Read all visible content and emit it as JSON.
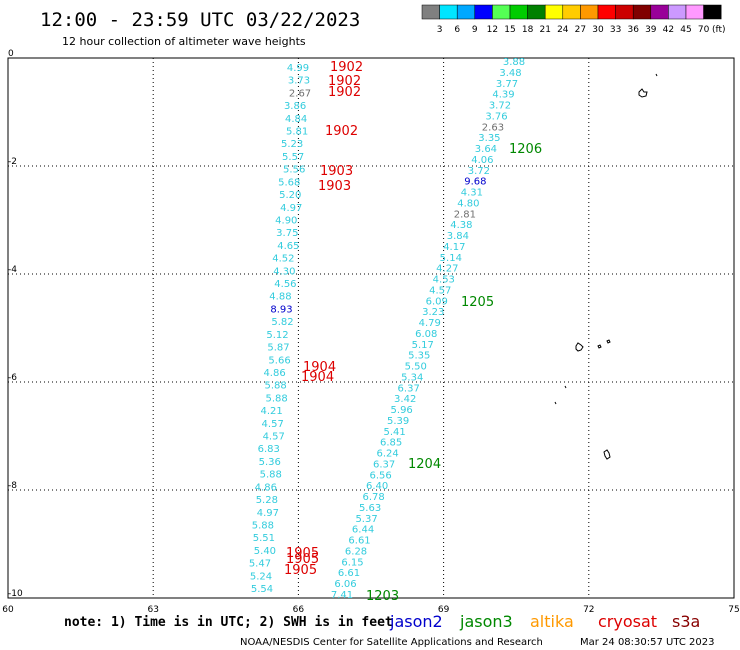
{
  "header": {
    "title": "12:00 - 23:59 UTC 03/22/2023",
    "subtitle": "12 hour collection of altimeter wave heights"
  },
  "color_scale": {
    "unit": "(ft)",
    "bins": [
      {
        "color": "#808080",
        "label": "3"
      },
      {
        "color": "#00e5ff",
        "label": "6"
      },
      {
        "color": "#00a8ff",
        "label": "9"
      },
      {
        "color": "#0000ff",
        "label": "12"
      },
      {
        "color": "#55ff55",
        "label": "15"
      },
      {
        "color": "#00cc00",
        "label": "18"
      },
      {
        "color": "#008000",
        "label": "21"
      },
      {
        "color": "#ffff00",
        "label": "24"
      },
      {
        "color": "#ffcc00",
        "label": "27"
      },
      {
        "color": "#ff9900",
        "label": "30"
      },
      {
        "color": "#ff0000",
        "label": "33"
      },
      {
        "color": "#cc0000",
        "label": "36"
      },
      {
        "color": "#800000",
        "label": "39"
      },
      {
        "color": "#990099",
        "label": "42"
      },
      {
        "color": "#cc99ff",
        "label": "45"
      },
      {
        "color": "#ff99ff",
        "label": "70"
      },
      {
        "color": "#000000",
        "label": ""
      }
    ]
  },
  "axes": {
    "lat_labels": [
      "0",
      "-2",
      "-4",
      "-6",
      "-8",
      "-10"
    ],
    "lon_labels": [
      "60",
      "63",
      "66",
      "69",
      "72",
      "75"
    ]
  },
  "colors": {
    "cyan": "#33ccdd",
    "gray": "#707070",
    "blue": "#0000cc",
    "red": "#dd0000",
    "green": "#008800"
  },
  "tracks": {
    "west": [
      {
        "v": "4.99",
        "c": "cyan"
      },
      {
        "v": "3.73",
        "c": "cyan"
      },
      {
        "v": "2.67",
        "c": "gray"
      },
      {
        "v": "3.86",
        "c": "cyan"
      },
      {
        "v": "4.84",
        "c": "cyan"
      },
      {
        "v": "5.81",
        "c": "cyan"
      },
      {
        "v": "5.23",
        "c": "cyan"
      },
      {
        "v": "5.57",
        "c": "cyan"
      },
      {
        "v": "5.56",
        "c": "cyan"
      },
      {
        "v": "5.68",
        "c": "cyan"
      },
      {
        "v": "5.20",
        "c": "cyan"
      },
      {
        "v": "4.97",
        "c": "cyan"
      },
      {
        "v": "4.90",
        "c": "cyan"
      },
      {
        "v": "3.75",
        "c": "cyan"
      },
      {
        "v": "4.65",
        "c": "cyan"
      },
      {
        "v": "4.52",
        "c": "cyan"
      },
      {
        "v": "4.30",
        "c": "cyan"
      },
      {
        "v": "4.56",
        "c": "cyan"
      },
      {
        "v": "4.88",
        "c": "cyan"
      },
      {
        "v": "8.93",
        "c": "blue"
      },
      {
        "v": "5.82",
        "c": "cyan"
      },
      {
        "v": "5.12",
        "c": "cyan"
      },
      {
        "v": "5.87",
        "c": "cyan"
      },
      {
        "v": "5.66",
        "c": "cyan"
      },
      {
        "v": "4.86",
        "c": "cyan"
      },
      {
        "v": "5.88",
        "c": "cyan"
      },
      {
        "v": "5.88",
        "c": "cyan"
      },
      {
        "v": "4.21",
        "c": "cyan"
      },
      {
        "v": "4.57",
        "c": "cyan"
      },
      {
        "v": "4.57",
        "c": "cyan"
      },
      {
        "v": "6.83",
        "c": "cyan"
      },
      {
        "v": "5.36",
        "c": "cyan"
      },
      {
        "v": "5.88",
        "c": "cyan"
      },
      {
        "v": "4.86",
        "c": "cyan"
      },
      {
        "v": "5.28",
        "c": "cyan"
      },
      {
        "v": "4.97",
        "c": "cyan"
      },
      {
        "v": "5.88",
        "c": "cyan"
      },
      {
        "v": "5.51",
        "c": "cyan"
      },
      {
        "v": "5.40",
        "c": "cyan"
      },
      {
        "v": "5.47",
        "c": "cyan"
      },
      {
        "v": "5.24",
        "c": "cyan"
      },
      {
        "v": "5.54",
        "c": "cyan"
      }
    ],
    "east": [
      {
        "v": "3.88",
        "c": "cyan"
      },
      {
        "v": "3.48",
        "c": "cyan"
      },
      {
        "v": "3.77",
        "c": "cyan"
      },
      {
        "v": "4.39",
        "c": "cyan"
      },
      {
        "v": "3.72",
        "c": "cyan"
      },
      {
        "v": "3.76",
        "c": "cyan"
      },
      {
        "v": "2.63",
        "c": "gray"
      },
      {
        "v": "3.35",
        "c": "cyan"
      },
      {
        "v": "3.64",
        "c": "cyan"
      },
      {
        "v": "4.06",
        "c": "cyan"
      },
      {
        "v": "3.72",
        "c": "cyan"
      },
      {
        "v": "9.68",
        "c": "blue"
      },
      {
        "v": "4.31",
        "c": "cyan"
      },
      {
        "v": "4.80",
        "c": "cyan"
      },
      {
        "v": "2.81",
        "c": "gray"
      },
      {
        "v": "4.38",
        "c": "cyan"
      },
      {
        "v": "3.84",
        "c": "cyan"
      },
      {
        "v": "4.17",
        "c": "cyan"
      },
      {
        "v": "5.14",
        "c": "cyan"
      },
      {
        "v": "4.27",
        "c": "cyan"
      },
      {
        "v": "4.53",
        "c": "cyan"
      },
      {
        "v": "4.57",
        "c": "cyan"
      },
      {
        "v": "6.09",
        "c": "cyan"
      },
      {
        "v": "3.23",
        "c": "cyan"
      },
      {
        "v": "4.79",
        "c": "cyan"
      },
      {
        "v": "6.08",
        "c": "cyan"
      },
      {
        "v": "5.17",
        "c": "cyan"
      },
      {
        "v": "5.35",
        "c": "cyan"
      },
      {
        "v": "5.50",
        "c": "cyan"
      },
      {
        "v": "5.34",
        "c": "cyan"
      },
      {
        "v": "6.37",
        "c": "cyan"
      },
      {
        "v": "3.42",
        "c": "cyan"
      },
      {
        "v": "5.96",
        "c": "cyan"
      },
      {
        "v": "5.39",
        "c": "cyan"
      },
      {
        "v": "5.41",
        "c": "cyan"
      },
      {
        "v": "6.85",
        "c": "cyan"
      },
      {
        "v": "6.24",
        "c": "cyan"
      },
      {
        "v": "6.37",
        "c": "cyan"
      },
      {
        "v": "6.56",
        "c": "cyan"
      },
      {
        "v": "6.40",
        "c": "cyan"
      },
      {
        "v": "6.78",
        "c": "cyan"
      },
      {
        "v": "5.63",
        "c": "cyan"
      },
      {
        "v": "5.37",
        "c": "cyan"
      },
      {
        "v": "6.44",
        "c": "cyan"
      },
      {
        "v": "6.61",
        "c": "cyan"
      },
      {
        "v": "6.28",
        "c": "cyan"
      },
      {
        "v": "6.15",
        "c": "cyan"
      },
      {
        "v": "6.61",
        "c": "cyan"
      },
      {
        "v": "6.06",
        "c": "cyan"
      },
      {
        "v": "7.41",
        "c": "cyan"
      }
    ]
  },
  "time_labels": {
    "west": [
      "1902",
      "1902",
      "1902",
      "1902",
      "1903",
      "1903",
      "1904",
      "1904",
      "1905",
      "1905",
      "1905"
    ],
    "east": [
      "1206",
      "1205",
      "1204",
      "1203"
    ]
  },
  "footer": {
    "note": "note: 1) Time is in UTC; 2) SWH is in feet",
    "legend": [
      {
        "name": "jason2",
        "color": "#0000cc"
      },
      {
        "name": "jason3",
        "color": "#008800"
      },
      {
        "name": "altika",
        "color": "#ff9900"
      },
      {
        "name": "cryosat",
        "color": "#dd0000"
      },
      {
        "name": "s3a",
        "color": "#880000"
      }
    ],
    "credit": "NOAA/NESDIS Center for Satellite Applications and Research",
    "timestamp": "Mar 24 08:30:57 UTC 2023"
  }
}
